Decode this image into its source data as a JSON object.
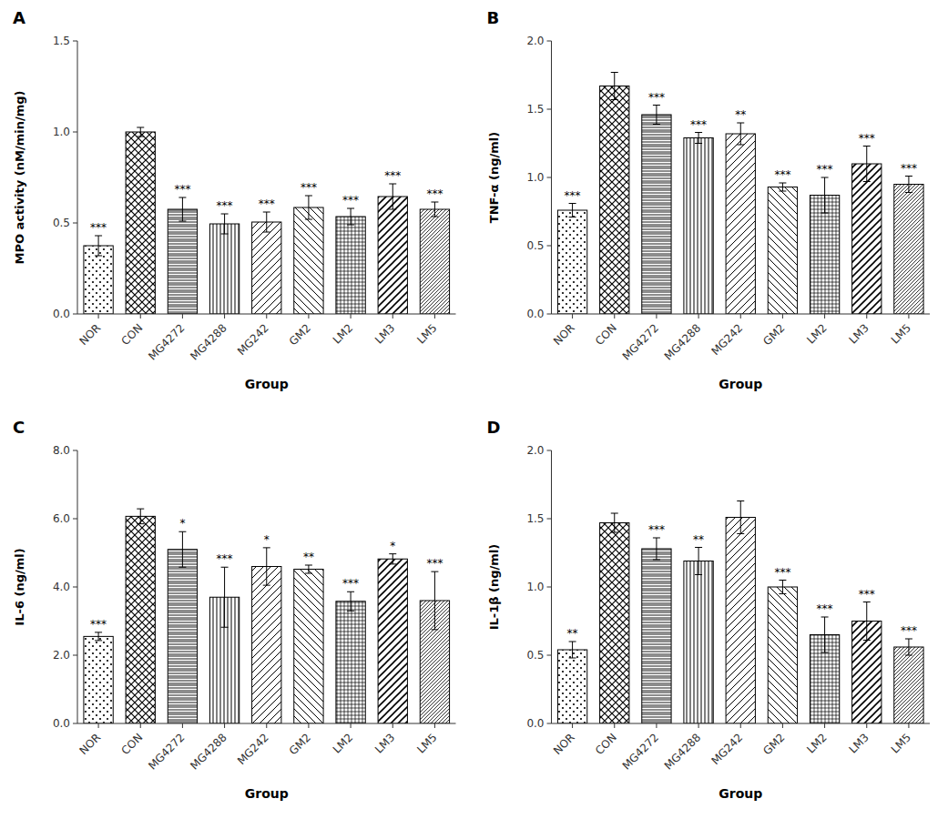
{
  "chart_data": [
    {
      "type": "bar",
      "title": "A",
      "xlabel": "Group",
      "ylabel": "MPO activity (nM/min/mg)",
      "categories": [
        "NOR",
        "CON",
        "MG4272",
        "MG4288",
        "MG242",
        "GM2",
        "LM2",
        "LM3",
        "LM5"
      ],
      "values": [
        0.375,
        1.0,
        0.575,
        0.495,
        0.505,
        0.585,
        0.535,
        0.645,
        0.575
      ],
      "errors": [
        0.055,
        0.025,
        0.065,
        0.055,
        0.055,
        0.065,
        0.045,
        0.07,
        0.04
      ],
      "annotations": [
        {
          "x": "NOR",
          "text": "***"
        },
        {
          "x": "MG4272",
          "text": "***"
        },
        {
          "x": "MG4288",
          "text": "***"
        },
        {
          "x": "MG242",
          "text": "***"
        },
        {
          "x": "GM2",
          "text": "***"
        },
        {
          "x": "LM2",
          "text": "***"
        },
        {
          "x": "LM3",
          "text": "***"
        },
        {
          "x": "LM5",
          "text": "***"
        }
      ],
      "ylim": [
        0,
        1.5
      ],
      "yticks": [
        {
          "value": 0.0,
          "label": "0.0"
        },
        0.5,
        {
          "value": 1.0,
          "label": "1.0"
        },
        1.5
      ],
      "color": "white",
      "grid": false
    },
    {
      "type": "bar",
      "title": "B",
      "xlabel": "Group",
      "ylabel": "TNF-α (ng/ml)",
      "categories": [
        "NOR",
        "CON",
        "MG4272",
        "MG4288",
        "MG242",
        "GM2",
        "LM2",
        "LM3",
        "LM5"
      ],
      "values": [
        0.76,
        1.67,
        1.46,
        1.29,
        1.32,
        0.93,
        0.87,
        1.1,
        0.95
      ],
      "errors": [
        0.05,
        0.1,
        0.07,
        0.04,
        0.08,
        0.03,
        0.13,
        0.13,
        0.06
      ],
      "annotations": [
        {
          "x": "NOR",
          "text": "***"
        },
        {
          "x": "MG4272",
          "text": "***"
        },
        {
          "x": "MG4288",
          "text": "***"
        },
        {
          "x": "MG242",
          "text": "**"
        },
        {
          "x": "GM2",
          "text": "***"
        },
        {
          "x": "LM2",
          "text": "***"
        },
        {
          "x": "LM3",
          "text": "***"
        },
        {
          "x": "LM5",
          "text": "***"
        }
      ],
      "ylim": [
        0,
        2.0
      ],
      "yticks": [
        {
          "value": 0.0,
          "label": "0.0"
        },
        0.5,
        {
          "value": 1.0,
          "label": "1.0"
        },
        1.5,
        {
          "value": 2.0,
          "label": "2.0"
        }
      ],
      "color": "white",
      "grid": false
    },
    {
      "type": "bar",
      "title": "C",
      "xlabel": "Group",
      "ylabel": "IL-6 (ng/ml)",
      "categories": [
        "NOR",
        "CON",
        "MG4272",
        "MG4288",
        "MG242",
        "GM2",
        "LM2",
        "LM3",
        "LM5"
      ],
      "values": [
        2.55,
        6.07,
        5.1,
        3.7,
        4.6,
        4.52,
        3.58,
        4.82,
        3.6
      ],
      "errors": [
        0.12,
        0.22,
        0.52,
        0.88,
        0.55,
        0.12,
        0.28,
        0.15,
        0.85
      ],
      "annotations": [
        {
          "x": "NOR",
          "text": "***"
        },
        {
          "x": "MG4272",
          "text": "*"
        },
        {
          "x": "MG4288",
          "text": "***"
        },
        {
          "x": "MG242",
          "text": "*"
        },
        {
          "x": "GM2",
          "text": "**"
        },
        {
          "x": "LM2",
          "text": "***"
        },
        {
          "x": "LM3",
          "text": "*"
        },
        {
          "x": "LM5",
          "text": "***"
        }
      ],
      "ylim": [
        0,
        8
      ],
      "yticks": [
        {
          "value": 0,
          "label": "0.0"
        },
        {
          "value": 2,
          "label": "2.0"
        },
        {
          "value": 4,
          "label": "4.0"
        },
        {
          "value": 6,
          "label": "6.0"
        },
        {
          "value": 8,
          "label": "8.0"
        }
      ],
      "color": "white",
      "grid": false
    },
    {
      "type": "bar",
      "title": "D",
      "xlabel": "Group",
      "ylabel": "IL-1β (ng/ml)",
      "categories": [
        "NOR",
        "CON",
        "MG4272",
        "MG4288",
        "MG242",
        "GM2",
        "LM2",
        "LM3",
        "LM5"
      ],
      "values": [
        0.54,
        1.47,
        1.28,
        1.19,
        1.51,
        1.0,
        0.65,
        0.75,
        0.56
      ],
      "errors": [
        0.06,
        0.07,
        0.08,
        0.1,
        0.12,
        0.05,
        0.13,
        0.14,
        0.06
      ],
      "annotations": [
        {
          "x": "NOR",
          "text": "**"
        },
        {
          "x": "MG4272",
          "text": "***"
        },
        {
          "x": "MG4288",
          "text": "**"
        },
        {
          "x": "GM2",
          "text": "***"
        },
        {
          "x": "LM2",
          "text": "***"
        },
        {
          "x": "LM3",
          "text": "***"
        },
        {
          "x": "LM5",
          "text": "***"
        }
      ],
      "ylim": [
        0,
        2.0
      ],
      "yticks": [
        {
          "value": 0.0,
          "label": "0.0"
        },
        0.5,
        {
          "value": 1.0,
          "label": "1.0"
        },
        1.5,
        {
          "value": 2.0,
          "label": "2.0"
        }
      ],
      "color": "white",
      "grid": false
    }
  ]
}
